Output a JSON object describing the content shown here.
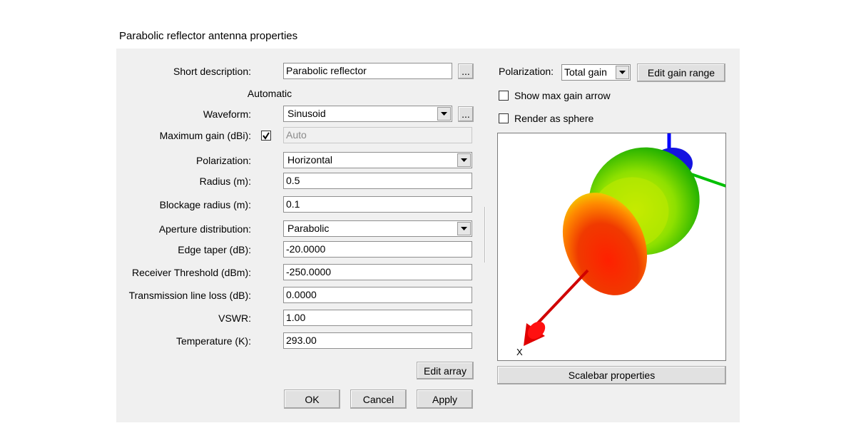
{
  "dialog": {
    "title": "Parabolic reflector antenna properties",
    "browse_button": "...",
    "automatic_label": "Automatic",
    "fields": [
      {
        "label": "Short description:",
        "value": "Parabolic reflector"
      },
      {
        "label": "Waveform:",
        "value": "Sinusoid"
      },
      {
        "label": "Maximum gain (dBi):",
        "value": "Auto",
        "checked": true
      },
      {
        "label": "Polarization:",
        "value": "Horizontal"
      },
      {
        "label": "Radius (m):",
        "value": "0.5"
      },
      {
        "label": "Blockage radius (m):",
        "value": "0.1"
      },
      {
        "label": "Aperture distribution:",
        "value": "Parabolic"
      },
      {
        "label": "Edge taper (dB):",
        "value": "-20.0000"
      },
      {
        "label": "Receiver Threshold (dBm):",
        "value": "-250.0000"
      },
      {
        "label": "Transmission line loss (dB):",
        "value": "0.0000"
      },
      {
        "label": "VSWR:",
        "value": "1.00"
      },
      {
        "label": "Temperature (K):",
        "value": "293.00"
      }
    ],
    "edit_array_button": "Edit array",
    "buttons": [
      "OK",
      "Cancel",
      "Apply"
    ],
    "pattern_panel": {
      "polarization_label": "Polarization:",
      "polarization_value": "Total gain",
      "edit_gain_range_button": "Edit gain range",
      "checkboxes": [
        {
          "label": "Show max gain arrow",
          "checked": false
        },
        {
          "label": "Render as sphere",
          "checked": false
        }
      ],
      "axis_label": "X",
      "scalebar_button": "Scalebar properties"
    }
  }
}
